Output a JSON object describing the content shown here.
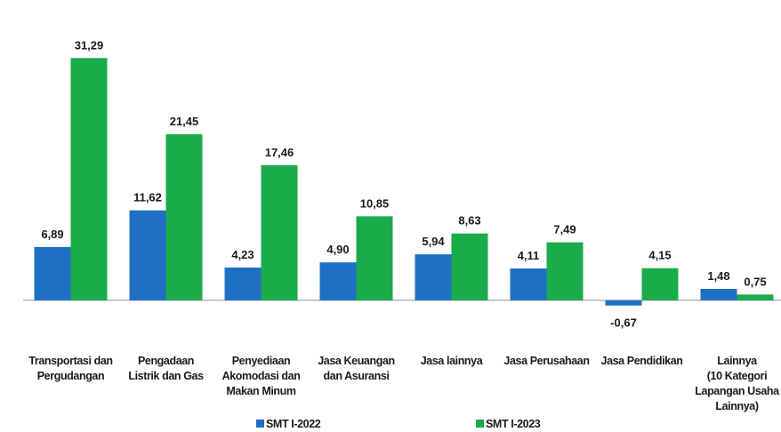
{
  "chart_data": {
    "type": "bar",
    "categories": [
      "Transportasi dan\nPergudangan",
      "Pengadaan\nListrik dan Gas",
      "Penyediaan\nAkomodasi dan\nMakan Minum",
      "Jasa Keuangan\ndan Asuransi",
      "Jasa lainnya",
      "Jasa Perusahaan",
      "Jasa Pendidikan",
      "Lainnya\n(10 Kategori\nLapangan Usaha\nLainnya)"
    ],
    "series": [
      {
        "name": "SMT I-2022",
        "color": "#1f6fc5",
        "values": [
          6.89,
          11.62,
          4.23,
          4.9,
          5.94,
          4.11,
          -0.67,
          1.48
        ],
        "value_labels": [
          "6,89",
          "11,62",
          "4,23",
          "4,90",
          "5,94",
          "4,11",
          "-0,67",
          "1,48"
        ]
      },
      {
        "name": "SMT I-2023",
        "color": "#1aab4b",
        "values": [
          31.29,
          21.45,
          17.46,
          10.85,
          8.63,
          7.49,
          4.15,
          0.75
        ],
        "value_labels": [
          "31,29",
          "21,45",
          "17,46",
          "10,85",
          "8,63",
          "7,49",
          "4,15",
          "0,75"
        ]
      }
    ],
    "ylim": [
      -3,
      35
    ],
    "legend": "bottom"
  }
}
